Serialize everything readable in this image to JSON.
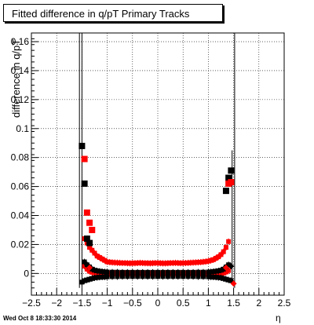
{
  "chart_data": {
    "type": "scatter",
    "title": "Fitted difference in q/pT  Primary Tracks",
    "xlabel": "η",
    "ylabel": "difference in q/pT",
    "xlim": [
      -2.5,
      2.5
    ],
    "ylim": [
      -0.015,
      0.166
    ],
    "xticks": [
      "−2.5",
      "−2",
      "−1.5",
      "−1",
      "−0.5",
      "0",
      "0.5",
      "1",
      "1.5",
      "2",
      "2.5"
    ],
    "yticks": [
      "0",
      "0.02",
      "0.04",
      "0.06",
      "0.08",
      "0.1",
      "0.12",
      "0.14",
      "0.16"
    ],
    "grid": true,
    "series": [
      {
        "color": "#000000",
        "marker": "square",
        "x": [
          -1.5,
          -1.45,
          -1.4,
          -1.35,
          1.35,
          1.4,
          1.45
        ],
        "y": [
          0.088,
          0.062,
          0.024,
          0.021,
          0.057,
          0.066,
          0.071
        ]
      },
      {
        "color": "#ff0000",
        "marker": "square",
        "x": [
          -1.45,
          -1.4,
          -1.35,
          -1.3,
          1.4,
          1.45
        ],
        "y": [
          0.079,
          0.042,
          0.035,
          0.03,
          0.062,
          0.063
        ]
      }
    ],
    "bands": [
      {
        "color": "#ff0000",
        "name": "upper",
        "x": [
          -1.45,
          -1.4,
          -1.35,
          -1.3,
          -1.25,
          -1.2,
          -1.15,
          -1.1,
          -1.05,
          -1.0,
          -0.95,
          -0.9,
          -0.85,
          -0.8,
          -0.75,
          -0.7,
          -0.65,
          -0.6,
          -0.55,
          -0.5,
          -0.45,
          -0.4,
          -0.35,
          -0.3,
          -0.25,
          -0.2,
          -0.15,
          -0.1,
          -0.05,
          0.0,
          0.05,
          0.1,
          0.15,
          0.2,
          0.25,
          0.3,
          0.35,
          0.4,
          0.45,
          0.5,
          0.55,
          0.6,
          0.65,
          0.7,
          0.75,
          0.8,
          0.85,
          0.9,
          0.95,
          1.0,
          1.05,
          1.1,
          1.15,
          1.2,
          1.25,
          1.3,
          1.35,
          1.4
        ],
        "y": [
          0.024,
          0.021,
          0.018,
          0.016,
          0.014,
          0.012,
          0.011,
          0.01,
          0.009,
          0.008,
          0.0078,
          0.0076,
          0.0075,
          0.0074,
          0.0073,
          0.0072,
          0.0072,
          0.0071,
          0.007,
          0.0071,
          0.0071,
          0.0072,
          0.0073,
          0.0072,
          0.0071,
          0.0071,
          0.007,
          0.0071,
          0.0072,
          0.0072,
          0.0071,
          0.007,
          0.007,
          0.0071,
          0.0072,
          0.0072,
          0.0073,
          0.0072,
          0.0071,
          0.0072,
          0.0072,
          0.0073,
          0.0074,
          0.0075,
          0.0076,
          0.0077,
          0.0078,
          0.008,
          0.0082,
          0.0085,
          0.009,
          0.0095,
          0.0105,
          0.0115,
          0.013,
          0.015,
          0.018,
          0.022
        ]
      },
      {
        "color": "#ff0000",
        "name": "lower",
        "x": [
          -1.45,
          -1.4,
          -1.35,
          -1.3,
          -1.25,
          -1.2,
          -1.15,
          -1.1,
          -1.05,
          -1.0,
          -0.95,
          -0.9,
          -0.85,
          -0.8,
          -0.75,
          -0.7,
          -0.65,
          -0.6,
          -0.55,
          -0.5,
          -0.45,
          -0.4,
          -0.35,
          -0.3,
          -0.25,
          -0.2,
          -0.15,
          -0.1,
          -0.05,
          0.0,
          0.05,
          0.1,
          0.15,
          0.2,
          0.25,
          0.3,
          0.35,
          0.4,
          0.45,
          0.5,
          0.55,
          0.6,
          0.65,
          0.7,
          0.75,
          0.8,
          0.85,
          0.9,
          0.95,
          1.0,
          1.05,
          1.1,
          1.15,
          1.2,
          1.25,
          1.3,
          1.35,
          1.4
        ],
        "y": [
          0.005,
          0.003,
          0.0015,
          0.0008,
          0.0004,
          0.0002,
          0.0,
          0.0001,
          0.0002,
          0.0,
          -0.0002,
          0.0,
          0.0001,
          0.0,
          -0.0001,
          0.0,
          0.0001,
          0.0002,
          0.0001,
          0.0,
          -0.0001,
          0.0,
          0.0001,
          0.0,
          -0.0001,
          0.0,
          0.0,
          0.0001,
          0.0,
          0.0,
          -0.0001,
          0.0,
          0.0001,
          0.0,
          0.0,
          -0.0001,
          0.0,
          0.0001,
          0.0,
          -0.0001,
          0.0,
          0.0,
          0.0001,
          0.0,
          0.0,
          -0.0002,
          0.0,
          0.0,
          -0.0002,
          -0.0004,
          -0.0005,
          -0.0004,
          -0.0002,
          0.0,
          -0.0003,
          0.0003,
          0.001,
          0.002
        ]
      },
      {
        "color": "#000000",
        "name": "black-upper",
        "x": [
          -1.45,
          -1.4,
          -1.35,
          -1.3,
          -1.25,
          -1.2,
          -1.15,
          -1.1,
          -1.05,
          -1.0,
          -0.9,
          -0.8,
          -0.7,
          -0.6,
          -0.5,
          -0.4,
          -0.3,
          -0.2,
          -0.1,
          0.0,
          0.1,
          0.2,
          0.3,
          0.4,
          0.5,
          0.6,
          0.7,
          0.8,
          0.9,
          1.0,
          1.05,
          1.1,
          1.15,
          1.2,
          1.25,
          1.3,
          1.35,
          1.4
        ],
        "y": [
          0.008,
          0.006,
          0.0045,
          0.003,
          0.0022,
          0.0018,
          0.0015,
          0.0013,
          0.0011,
          0.001,
          0.0009,
          0.0009,
          0.0008,
          0.0008,
          0.0008,
          0.0008,
          0.0008,
          0.0008,
          0.0008,
          0.0008,
          0.0008,
          0.0008,
          0.0008,
          0.0008,
          0.0008,
          0.0008,
          0.0008,
          0.0009,
          0.0009,
          0.001,
          0.0011,
          0.0013,
          0.0015,
          0.0018,
          0.0022,
          0.003,
          0.0045,
          0.006
        ]
      },
      {
        "color": "#000000",
        "name": "black-lower",
        "x": [
          -1.5,
          -1.45,
          -1.4,
          -1.35,
          -1.3,
          -1.25,
          -1.2,
          -1.15,
          -1.1,
          -1.05,
          -1.0,
          -0.9,
          -0.8,
          -0.7,
          -0.6,
          -0.5,
          -0.4,
          -0.3,
          -0.2,
          -0.1,
          0.0,
          0.1,
          0.2,
          0.3,
          0.4,
          0.5,
          0.6,
          0.7,
          0.8,
          0.9,
          1.0,
          1.05,
          1.1,
          1.15,
          1.2,
          1.25,
          1.3,
          1.35,
          1.4,
          1.45
        ],
        "y": [
          -0.006,
          -0.005,
          -0.0045,
          -0.004,
          -0.0035,
          -0.003,
          -0.0028,
          -0.0026,
          -0.0025,
          -0.0024,
          -0.0023,
          -0.0022,
          -0.0022,
          -0.0021,
          -0.0021,
          -0.0021,
          -0.0021,
          -0.0021,
          -0.0021,
          -0.0021,
          -0.0021,
          -0.0021,
          -0.0021,
          -0.0021,
          -0.0021,
          -0.0021,
          -0.0021,
          -0.0021,
          -0.0022,
          -0.0022,
          -0.0023,
          -0.0024,
          -0.0025,
          -0.0026,
          -0.0028,
          -0.003,
          -0.0035,
          -0.004,
          -0.0045,
          -0.005
        ]
      }
    ],
    "diamonds": {
      "x": [
        -1.4,
        -1.35,
        1.35,
        1.45,
        1.5
      ],
      "y": [
        0.006,
        0.004,
        0.004,
        0.005,
        -0.007
      ],
      "colors": [
        "#000000",
        "#ff0000",
        "#ff0000",
        "#000000",
        "#ff0000"
      ]
    },
    "edge_lines": {
      "x": [
        -1.55,
        -1.5,
        1.47,
        1.52
      ],
      "ytop": [
        0.166,
        0.166,
        0.085,
        0.166
      ],
      "ybottom": [
        -0.01,
        -0.01,
        -0.005,
        -0.01
      ]
    }
  },
  "footer": {
    "timestamp": "Wed Oct  8 18:33:30 2014"
  }
}
